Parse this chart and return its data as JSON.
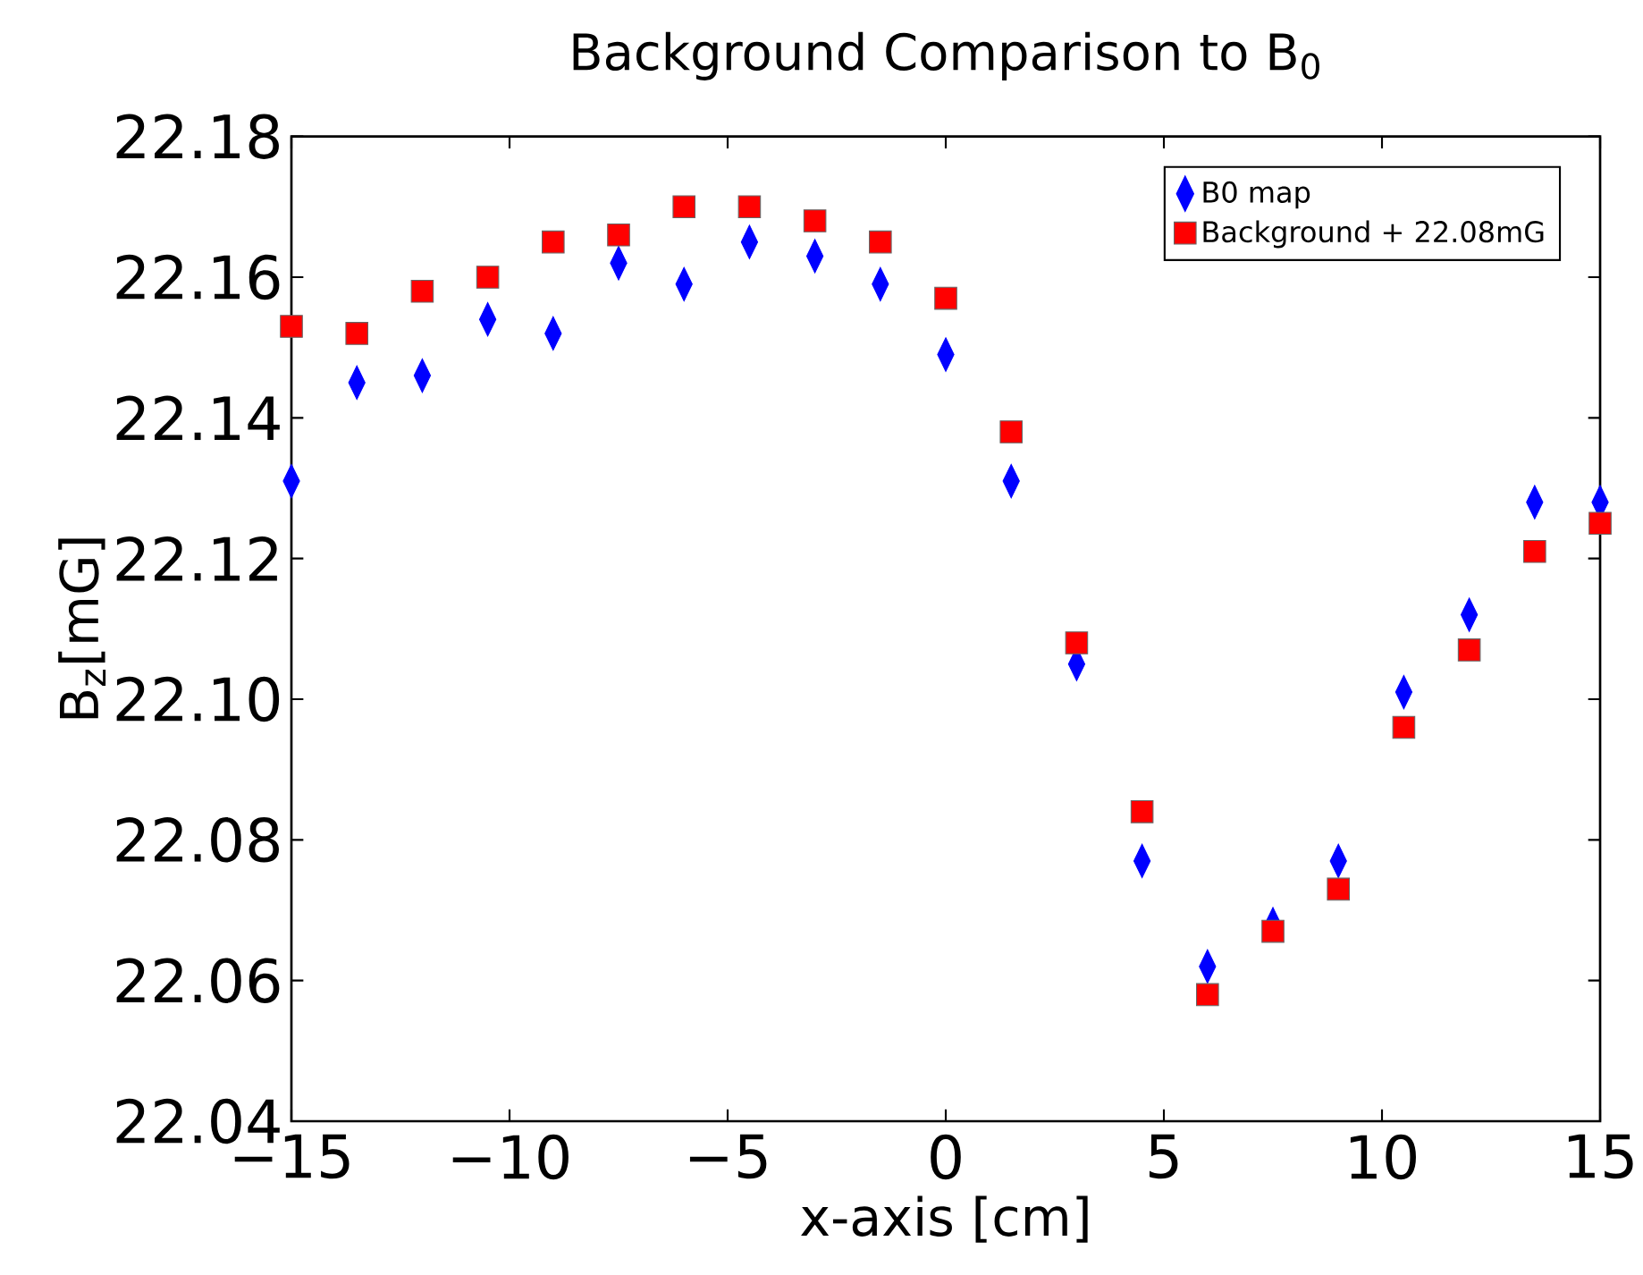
{
  "chart_data": {
    "type": "scatter",
    "title": "Background Comparison to B$_{0}$",
    "xlabel": "x-axis [cm]",
    "ylabel": "B$_{z}$[mG]",
    "x": [
      -15,
      -13.5,
      -12,
      -10.5,
      -9,
      -7.5,
      -6,
      -4.5,
      -3,
      -1.5,
      0,
      1.5,
      3,
      4.5,
      6,
      7.5,
      9,
      10.5,
      12,
      13.5,
      15
    ],
    "series": [
      {
        "name": "B0 map",
        "color": "#0000ff",
        "marker": "diamond",
        "values": [
          22.131,
          22.145,
          22.146,
          22.154,
          22.152,
          22.162,
          22.159,
          22.165,
          22.163,
          22.159,
          22.149,
          22.131,
          22.105,
          22.077,
          22.062,
          22.068,
          22.077,
          22.101,
          22.112,
          22.128,
          22.128
        ]
      },
      {
        "name": "Background + 22.08mG",
        "color": "#ff0000",
        "marker": "square",
        "values": [
          22.153,
          22.152,
          22.158,
          22.16,
          22.165,
          22.166,
          22.17,
          22.17,
          22.168,
          22.165,
          22.157,
          22.138,
          22.108,
          22.084,
          22.058,
          22.067,
          22.073,
          22.096,
          22.107,
          22.121,
          22.125
        ]
      }
    ],
    "xlim": [
      -15,
      15
    ],
    "ylim": [
      22.04,
      22.18
    ],
    "xticks": [
      {
        "value": -15,
        "label": "−15"
      },
      {
        "value": -10,
        "label": "−10"
      },
      {
        "value": -5,
        "label": "−5"
      },
      0,
      5,
      10,
      15
    ],
    "yticks": [
      {
        "value": 22.04,
        "label": "22.04"
      },
      {
        "value": 22.06,
        "label": "22.06"
      },
      {
        "value": 22.08,
        "label": "22.08"
      },
      {
        "value": 22.1,
        "label": "22.10"
      },
      {
        "value": 22.12,
        "label": "22.12"
      },
      {
        "value": 22.14,
        "label": "22.14"
      },
      {
        "value": 22.16,
        "label": "22.16"
      },
      {
        "value": 22.18,
        "label": "22.18"
      }
    ],
    "grid": false,
    "legend": "top right"
  }
}
